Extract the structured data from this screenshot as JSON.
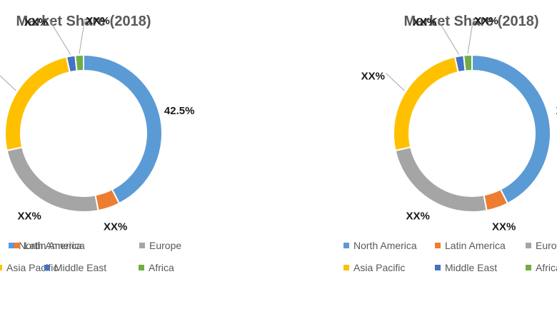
{
  "chart_data": [
    {
      "type": "pie",
      "donut": true,
      "title": "Market Share (2018)",
      "legend_position": "bottom",
      "categories": [
        "North America",
        "Latin America",
        "Europe",
        "Asia Pacific",
        "Middle East",
        "Africa"
      ],
      "values": [
        42.5,
        4.5,
        24.5,
        25.0,
        1.8,
        1.7
      ],
      "data_labels": [
        "42.5%",
        "XX%",
        "XX%",
        "XX%",
        "XX%",
        "XX%"
      ],
      "colors": [
        "#5b9bd5",
        "#ed7d31",
        "#a5a5a5",
        "#ffc000",
        "#4472c4",
        "#70ad47"
      ]
    },
    {
      "type": "pie",
      "donut": true,
      "title": "Market Share (2018)",
      "legend_position": "bottom",
      "categories": [
        "North America",
        "Latin America",
        "Europe",
        "Asia Pacific",
        "Middle East",
        "Africa"
      ],
      "values": [
        42.5,
        4.5,
        24.5,
        25.0,
        1.8,
        1.7
      ],
      "data_labels": [
        "XX%",
        "XX%",
        "XX%",
        "XX%",
        "XX%",
        "XX%"
      ],
      "colors": [
        "#5b9bd5",
        "#ed7d31",
        "#a5a5a5",
        "#ffc000",
        "#4472c4",
        "#70ad47"
      ]
    }
  ]
}
